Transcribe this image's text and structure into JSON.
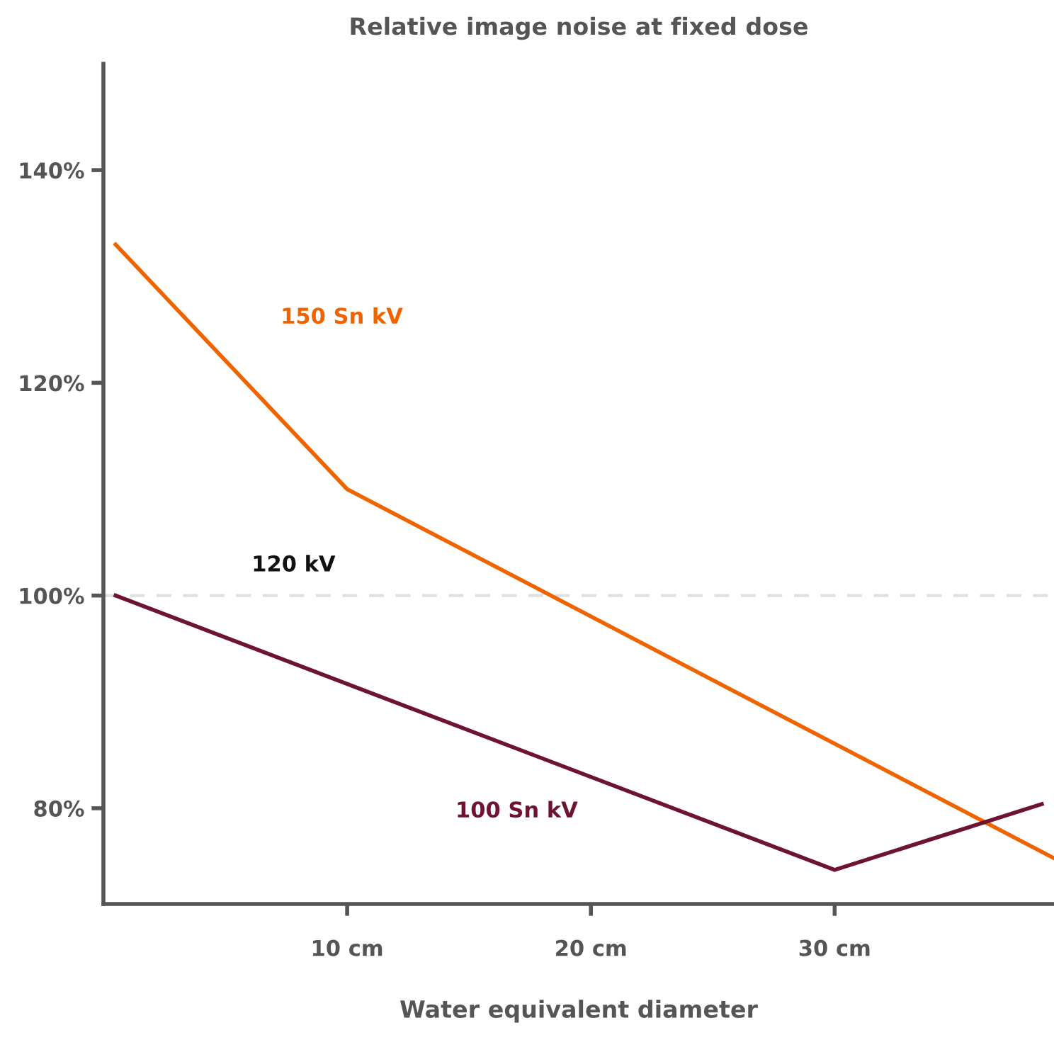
{
  "chart_data": {
    "type": "line",
    "title": "Relative image noise at fixed dose",
    "xlabel": "Water equivalent diameter",
    "xlim": [
      0,
      39
    ],
    "xticks": [
      {
        "value": 10,
        "label": "10 cm"
      },
      {
        "value": 20,
        "label": "20 cm"
      },
      {
        "value": 30,
        "label": "30 cm"
      }
    ],
    "ylim": [
      71,
      150
    ],
    "yticks": [
      {
        "value": 80,
        "label": "80%"
      },
      {
        "value": 100,
        "label": "100%"
      },
      {
        "value": 120,
        "label": "120%"
      },
      {
        "value": 140,
        "label": "140%"
      }
    ],
    "grid": false,
    "legend": false,
    "marker": "none",
    "line_style": "solid",
    "series": [
      {
        "name": "150 Sn kV",
        "color": "#f06400",
        "x": [
          0.5,
          10,
          39
        ],
        "values": [
          133,
          110,
          75.3
        ]
      },
      {
        "name": "100 Sn kV",
        "color": "#6e1432",
        "x": [
          0.5,
          30,
          38.5
        ],
        "values": [
          100,
          74.2,
          80.4
        ]
      }
    ],
    "ref_lines": [
      {
        "axis": "y",
        "value": 100,
        "label": "120 kV",
        "color": "#e0e0e0",
        "line_style": "dashed"
      }
    ]
  }
}
